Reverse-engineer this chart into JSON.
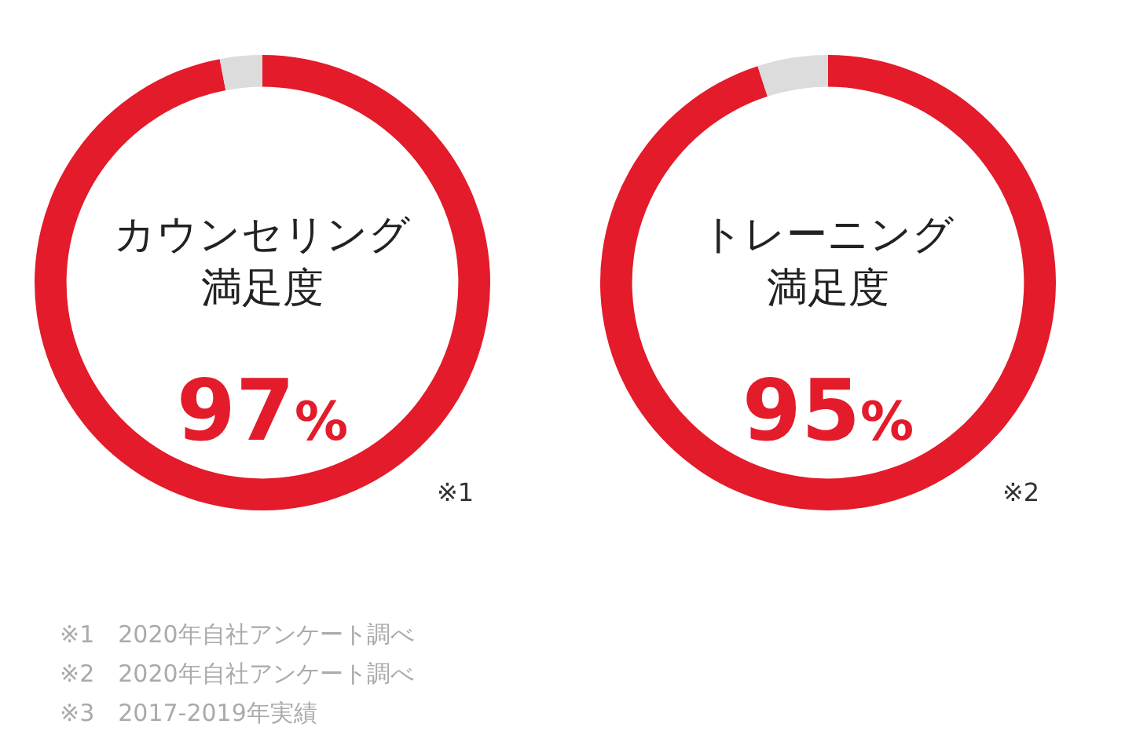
{
  "chart_data": [
    {
      "type": "donut",
      "title": "カウンセリング",
      "subtitle": "満足度",
      "categories": [
        null,
        null
      ],
      "values": [
        97,
        3
      ],
      "colors": [
        "#e31b2a",
        "#dcdcdc"
      ],
      "value_labels": [
        "97%",
        null
      ],
      "annotations": [
        "※1"
      ]
    },
    {
      "type": "donut",
      "title": "トレーニング",
      "subtitle": "満足度",
      "categories": [
        null,
        null
      ],
      "values": [
        95,
        5
      ],
      "colors": [
        "#e31b2a",
        "#dcdcdc"
      ],
      "value_labels": [
        "95%",
        null
      ],
      "annotations": [
        "※2"
      ]
    },
    {
      "type": "other",
      "annotations": [
        "※1　2020年自社アンケート調べ",
        "※2　2020年自社アンケート調べ",
        "※3　2017-2019年実績"
      ]
    }
  ]
}
